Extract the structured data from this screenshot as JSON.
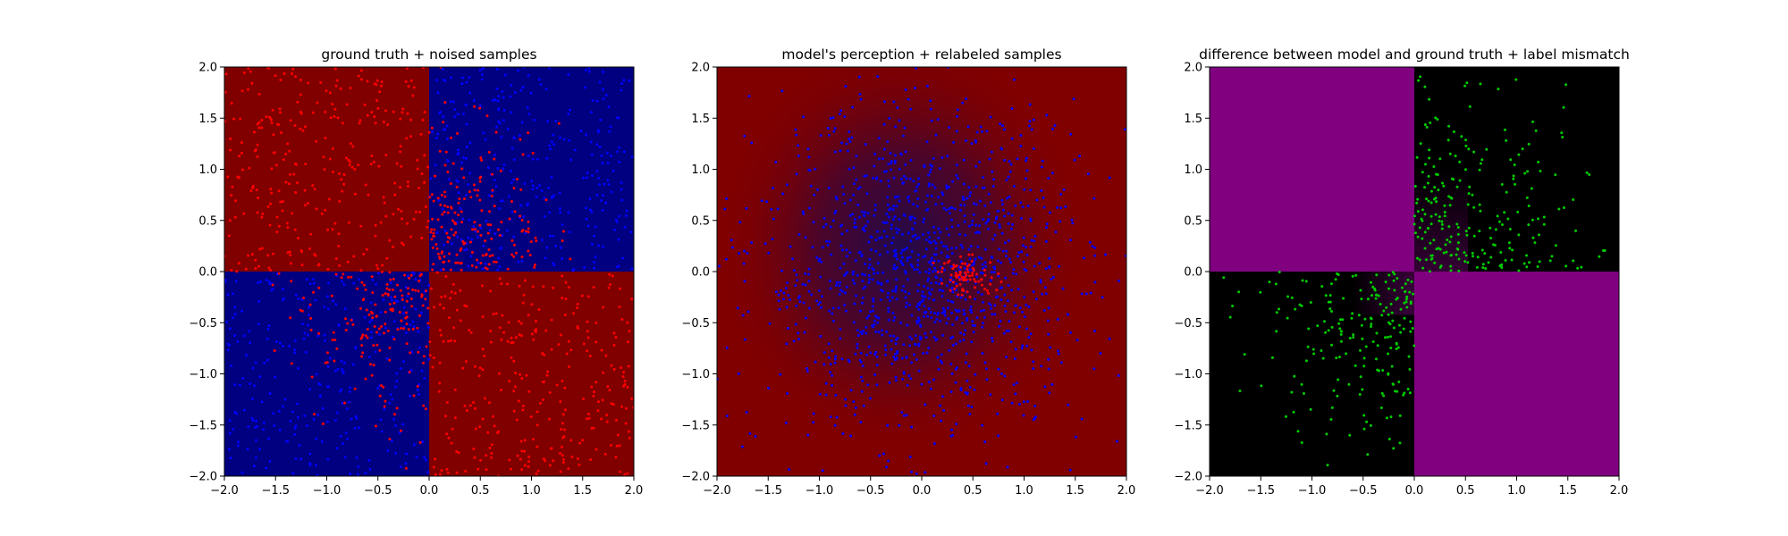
{
  "chart_data": [
    {
      "type": "scatter",
      "title": "ground truth + noised samples",
      "xlim": [
        -2.0,
        2.0
      ],
      "ylim": [
        -2.0,
        2.0
      ],
      "x_ticks": [
        "−2.0",
        "−1.5",
        "−1.0",
        "−0.5",
        "0.0",
        "0.5",
        "1.0",
        "1.5",
        "2.0"
      ],
      "y_ticks": [
        "−2.0",
        "−1.5",
        "−1.0",
        "−0.5",
        "0.0",
        "0.5",
        "1.0",
        "1.5",
        "2.0"
      ],
      "background": {
        "description": "XOR quadrant pattern",
        "quadrants": {
          "top_left": "#800000",
          "top_right": "#000080",
          "bottom_left": "#000080",
          "bottom_right": "#800000"
        }
      },
      "series": [
        {
          "color": "#0000ff",
          "marker_size": 2,
          "region": "x*y > 0 (top-right & bottom-left)",
          "approx_count": 600
        },
        {
          "color": "#ff0000",
          "marker_size": 2,
          "region": "x*y < 0 (top-left & bottom-right)",
          "approx_count": 600
        },
        {
          "color": "#ff0000",
          "marker_size": 2,
          "region": "x*y > 0 dense cluster",
          "approx_count": 350
        }
      ]
    },
    {
      "type": "scatter",
      "title": "model's perception + relabeled samples",
      "xlim": [
        -2.0,
        2.0
      ],
      "ylim": [
        -2.0,
        2.0
      ],
      "x_ticks": [
        "−2.0",
        "−1.5",
        "−1.0",
        "−0.5",
        "0.0",
        "0.5",
        "1.0",
        "1.5",
        "2.0"
      ],
      "y_ticks": [
        "−2.0",
        "−1.5",
        "−1.0",
        "−0.5",
        "0.0",
        "0.5",
        "1.0",
        "1.5",
        "2.0"
      ],
      "background": {
        "description": "mostly dark red with a diffuse dark blue region around the origin",
        "base_color": "#800000",
        "center_color": "#1e0a4e",
        "center": [
          -0.2,
          0.25
        ]
      },
      "series": [
        {
          "color": "#0000ff",
          "marker_size": 2,
          "region": "spread across the plane",
          "approx_count": 1300
        },
        {
          "color": "#ff0000",
          "marker_size": 2,
          "region": "small cluster near (0.45, -0.05)",
          "approx_count": 80
        }
      ]
    },
    {
      "type": "scatter",
      "title": "difference between model and ground truth + label mismatch",
      "xlim": [
        -2.0,
        2.0
      ],
      "ylim": [
        -2.0,
        2.0
      ],
      "x_ticks": [
        "−2.0",
        "−1.5",
        "−1.0",
        "−0.5",
        "0.0",
        "0.5",
        "1.0",
        "1.5",
        "2.0"
      ],
      "y_ticks": [
        "−2.0",
        "−1.5",
        "−1.0",
        "−0.5",
        "0.0",
        "0.5",
        "1.0",
        "1.5",
        "2.0"
      ],
      "background": {
        "description": "purple where the model agrees with truth (top-left & bottom-right), black elsewhere, with a purple haze near the origin",
        "quadrants": {
          "top_left": "#800080",
          "top_right": "#000000",
          "bottom_left": "#000000",
          "bottom_right": "#800080"
        }
      },
      "series": [
        {
          "color": "#00cc00",
          "marker_size": 2,
          "region": "x*y > 0 (top-right & bottom-left)",
          "approx_count": 450
        }
      ]
    }
  ]
}
